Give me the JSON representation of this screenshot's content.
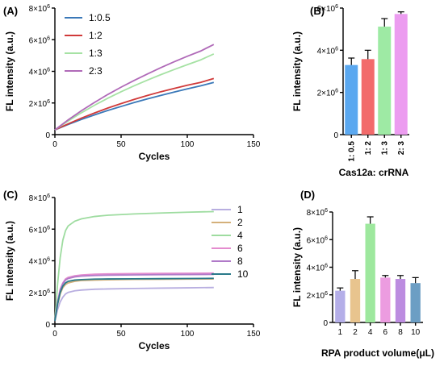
{
  "panels": {
    "A": "(A)",
    "B": "(B)",
    "C": "(C)",
    "D": "(D)"
  },
  "chart_data": [
    {
      "id": "A",
      "type": "line",
      "xlabel": "Cycles",
      "ylabel": "FL intensity (a.u.)",
      "xlim": [
        0,
        150
      ],
      "ylim": [
        0,
        8000000
      ],
      "xticks": [
        "0",
        "50",
        "100",
        "150"
      ],
      "yticks": [
        {
          "v": 0,
          "m": "0"
        },
        {
          "v": 2000000,
          "m": "2×10",
          "e": "6"
        },
        {
          "v": 4000000,
          "m": "4×10",
          "e": "6"
        },
        {
          "v": 6000000,
          "m": "6×10",
          "e": "6"
        },
        {
          "v": 8000000,
          "m": "8×10",
          "e": "6"
        }
      ],
      "legend_position": "top-left",
      "x": [
        0,
        10,
        20,
        30,
        40,
        50,
        60,
        70,
        80,
        90,
        100,
        110,
        120
      ],
      "series": [
        {
          "name": "1:0.5",
          "color": "#3a78b8",
          "values": [
            300000,
            640000,
            960000,
            1250000,
            1530000,
            1780000,
            2030000,
            2260000,
            2480000,
            2690000,
            2890000,
            3080000,
            3300000
          ]
        },
        {
          "name": "1:2",
          "color": "#d03a3a",
          "values": [
            300000,
            680000,
            1040000,
            1370000,
            1680000,
            1960000,
            2230000,
            2480000,
            2710000,
            2920000,
            3120000,
            3300000,
            3550000
          ]
        },
        {
          "name": "1:3",
          "color": "#a6e2a4",
          "values": [
            300000,
            860000,
            1380000,
            1860000,
            2300000,
            2710000,
            3090000,
            3450000,
            3790000,
            4110000,
            4420000,
            4720000,
            5100000
          ]
        },
        {
          "name": "2:3",
          "color": "#b06ab8",
          "values": [
            300000,
            930000,
            1510000,
            2040000,
            2540000,
            3000000,
            3430000,
            3840000,
            4230000,
            4600000,
            4950000,
            5280000,
            5700000
          ]
        }
      ]
    },
    {
      "id": "B",
      "type": "bar",
      "xlabel": "Cas12a: crRNA",
      "ylabel": "FL intensity (a.u.)",
      "ylim": [
        0,
        6000000
      ],
      "yticks": [
        {
          "v": 0,
          "m": "0"
        },
        {
          "v": 2000000,
          "m": "2×10",
          "e": "6"
        },
        {
          "v": 4000000,
          "m": "4×10",
          "e": "6"
        },
        {
          "v": 6000000,
          "m": "6×10",
          "e": "6"
        }
      ],
      "categories": [
        "1: 0.5",
        "1: 2",
        "1: 3",
        "2: 3"
      ],
      "values": [
        3300000,
        3580000,
        5120000,
        5720000
      ],
      "errors": [
        330000,
        420000,
        380000,
        100000
      ],
      "colors": [
        "#5aa8f0",
        "#f26b6b",
        "#9eeaa4",
        "#ec9cf0"
      ]
    },
    {
      "id": "C",
      "type": "line",
      "xlabel": "Cycles",
      "ylabel": "FL intensity (a.u.)",
      "xlim": [
        0,
        150
      ],
      "ylim": [
        0,
        8000000
      ],
      "xticks": [
        "0",
        "50",
        "100",
        "150"
      ],
      "yticks": [
        {
          "v": 0,
          "m": "0"
        },
        {
          "v": 2000000,
          "m": "2×10",
          "e": "6"
        },
        {
          "v": 4000000,
          "m": "4×10",
          "e": "6"
        },
        {
          "v": 6000000,
          "m": "6×10",
          "e": "6"
        },
        {
          "v": 8000000,
          "m": "8×10",
          "e": "6"
        }
      ],
      "legend_position": "right",
      "x": [
        0,
        2,
        4,
        6,
        8,
        10,
        15,
        20,
        30,
        40,
        60,
        80,
        100,
        120
      ],
      "series": [
        {
          "name": "1",
          "color": "#b8aee0",
          "values": [
            200000,
            900000,
            1400000,
            1700000,
            1900000,
            2000000,
            2100000,
            2150000,
            2200000,
            2220000,
            2250000,
            2270000,
            2290000,
            2310000
          ]
        },
        {
          "name": "2",
          "color": "#d4b07a",
          "values": [
            200000,
            1200000,
            1900000,
            2300000,
            2500000,
            2600000,
            2700000,
            2750000,
            2780000,
            2800000,
            2820000,
            2830000,
            2840000,
            2850000
          ]
        },
        {
          "name": "4",
          "color": "#9edca0",
          "values": [
            200000,
            2500000,
            4200000,
            5300000,
            5900000,
            6200000,
            6500000,
            6650000,
            6800000,
            6880000,
            6960000,
            7020000,
            7070000,
            7110000
          ]
        },
        {
          "name": "6",
          "color": "#e48ccf",
          "values": [
            200000,
            1400000,
            2200000,
            2600000,
            2850000,
            2950000,
            3050000,
            3100000,
            3150000,
            3170000,
            3190000,
            3200000,
            3210000,
            3220000
          ]
        },
        {
          "name": "8",
          "color": "#b07ac8",
          "values": [
            200000,
            1350000,
            2150000,
            2550000,
            2780000,
            2880000,
            2980000,
            3030000,
            3070000,
            3090000,
            3110000,
            3120000,
            3130000,
            3140000
          ]
        },
        {
          "name": "10",
          "color": "#2a7a8a",
          "values": [
            200000,
            1250000,
            2000000,
            2400000,
            2600000,
            2700000,
            2780000,
            2810000,
            2840000,
            2850000,
            2860000,
            2870000,
            2880000,
            2890000
          ]
        }
      ]
    },
    {
      "id": "D",
      "type": "bar",
      "xlabel": "RPA product volume(μL)",
      "ylabel": "FL intensity (a.u.)",
      "ylim": [
        0,
        8000000
      ],
      "yticks": [
        {
          "v": 0,
          "m": "0"
        },
        {
          "v": 2000000,
          "m": "2×10",
          "e": "6"
        },
        {
          "v": 4000000,
          "m": "4×10",
          "e": "6"
        },
        {
          "v": 6000000,
          "m": "6×10",
          "e": "6"
        },
        {
          "v": 8000000,
          "m": "8×10",
          "e": "6"
        }
      ],
      "categories": [
        "1",
        "2",
        "4",
        "6",
        "8",
        "10"
      ],
      "values": [
        2300000,
        3150000,
        7150000,
        3250000,
        3150000,
        2850000
      ],
      "errors": [
        200000,
        600000,
        500000,
        150000,
        250000,
        400000
      ],
      "colors": [
        "#b4aee8",
        "#e8c48e",
        "#9ee89e",
        "#ec9ce0",
        "#bc8ce0",
        "#6c9ec4"
      ]
    }
  ]
}
